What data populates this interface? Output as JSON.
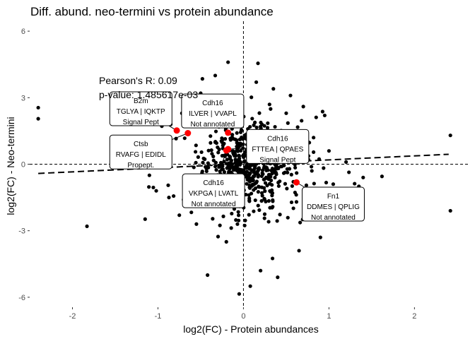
{
  "chart_data": {
    "type": "scatter",
    "title": "Diff. abund. neo-termini vs protein abundance",
    "xlabel": "log2(FC) - Protein abundances",
    "ylabel": "log2(FC) - Neo-termini",
    "xlim": [
      -2.5,
      2.65
    ],
    "ylim": [
      -6.45,
      6.45
    ],
    "xticks": [
      -2,
      -1,
      0,
      1,
      2
    ],
    "yticks": [
      -6,
      -3,
      0,
      3,
      6
    ],
    "grid": false,
    "stats": [
      {
        "text": "Pearson's R: 0.09"
      },
      {
        "text": "p-value: 1.485617e-03"
      }
    ],
    "regression": {
      "slope": 0.18,
      "intercept": 0.015,
      "x_range": [
        -2.4,
        2.4
      ]
    },
    "colors": {
      "points": "#000000",
      "highlight": "#ff0000",
      "reference": "#000000"
    },
    "highlighted": [
      {
        "gene": "B2m",
        "sequence": "TGLYA | IQKTP",
        "annotation": "Signal Pept",
        "x": -0.78,
        "y": 1.52,
        "label_x": -1.2,
        "label_y": 2.5
      },
      {
        "gene": "Ctsb",
        "sequence": "RVAFG | EDIDL",
        "annotation": "Propept.",
        "x": -0.65,
        "y": 1.4,
        "label_x": -1.2,
        "label_y": 0.55
      },
      {
        "gene": "Cdh16",
        "sequence": "ILVER | VVAPL",
        "annotation": "Not annotated",
        "x": -0.18,
        "y": 1.42,
        "label_x": -0.36,
        "label_y": 2.4
      },
      {
        "gene": "Cdh16",
        "sequence": "FTTEA | QPAES",
        "annotation": "Signal Pept",
        "x": -0.18,
        "y": 0.68,
        "label_x": 0.4,
        "label_y": 0.8
      },
      {
        "gene": "Cdh16",
        "sequence": "VKPGA | LVATL",
        "annotation": "Not annotated",
        "x": -0.2,
        "y": 0.62,
        "label_x": -0.35,
        "label_y": -1.2
      },
      {
        "gene": "Fn1",
        "sequence": "DDMES | QPLIG",
        "annotation": "Not annotated",
        "x": 0.62,
        "y": -0.82,
        "label_x": 1.05,
        "label_y": -1.8
      }
    ],
    "points": [
      {
        "x": -2.4,
        "y": 2.55
      },
      {
        "x": -2.4,
        "y": 2.05
      },
      {
        "x": -1.83,
        "y": -2.8
      },
      {
        "x": -1.1,
        "y": -0.5
      },
      {
        "x": -1.02,
        "y": -1.2
      },
      {
        "x": -0.88,
        "y": -0.95
      },
      {
        "x": -0.72,
        "y": 2.3
      },
      {
        "x": -0.62,
        "y": 2.95
      },
      {
        "x": -0.5,
        "y": 3.2
      },
      {
        "x": -0.48,
        "y": 3.85
      },
      {
        "x": -0.33,
        "y": 4.0
      },
      {
        "x": -0.18,
        "y": 4.6
      },
      {
        "x": -0.08,
        "y": 3.0
      },
      {
        "x": 0.17,
        "y": 4.55
      },
      {
        "x": -0.6,
        "y": 2.3
      },
      {
        "x": -0.55,
        "y": 1.85
      },
      {
        "x": -0.85,
        "y": 1.8
      },
      {
        "x": 2.42,
        "y": 1.3
      },
      {
        "x": 2.42,
        "y": -2.1
      },
      {
        "x": 1.4,
        "y": -0.6
      },
      {
        "x": 1.62,
        "y": -0.55
      },
      {
        "x": 0.9,
        "y": -3.3
      },
      {
        "x": 0.65,
        "y": -3.9
      },
      {
        "x": 0.34,
        "y": -4.25
      },
      {
        "x": 0.08,
        "y": -5.5
      },
      {
        "x": -0.05,
        "y": -5.85
      },
      {
        "x": -0.42,
        "y": -5.0
      },
      {
        "x": -0.2,
        "y": -3.5
      },
      {
        "x": 0.2,
        "y": -4.8
      },
      {
        "x": 0.4,
        "y": -5.1
      },
      {
        "x": 1.05,
        "y": -0.9
      },
      {
        "x": 1.0,
        "y": 0.6
      },
      {
        "x": 0.82,
        "y": 1.2
      },
      {
        "x": 0.95,
        "y": 2.2
      },
      {
        "x": 0.7,
        "y": 2.6
      },
      {
        "x": 0.55,
        "y": 3.1
      },
      {
        "x": 0.35,
        "y": 3.4
      },
      {
        "x": 0.15,
        "y": 3.7
      },
      {
        "x": -0.7,
        "y": -1.6
      },
      {
        "x": -0.75,
        "y": -2.3
      },
      {
        "x": -0.55,
        "y": -2.7
      },
      {
        "x": -0.9,
        "y": 0.6
      },
      {
        "x": 0.62,
        "y": -1.7
      },
      {
        "x": 0.8,
        "y": -0.3
      },
      {
        "x": 1.2,
        "y": 0.1
      },
      {
        "x": 1.35,
        "y": -1.0
      },
      {
        "x": 1.15,
        "y": -2.0
      },
      {
        "x": -1.0,
        "y": 0.2
      },
      {
        "x": -0.95,
        "y": 1.2
      },
      {
        "x": 0.5,
        "y": 2.3
      }
    ]
  }
}
